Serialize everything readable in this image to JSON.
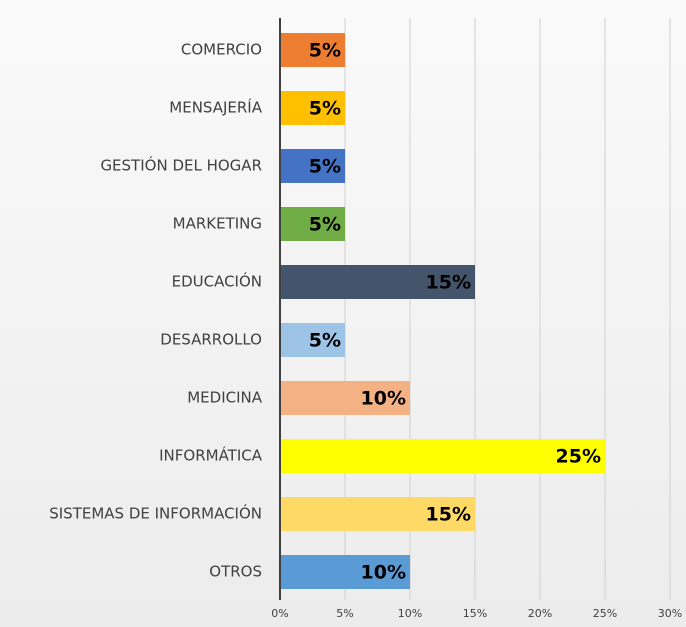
{
  "chart_data": {
    "type": "hbar",
    "categories": [
      "COMERCIO",
      "MENSAJERÍA",
      "GESTIÓN DEL HOGAR",
      "MARKETING",
      "EDUCACIÓN",
      "DESARROLLO",
      "MEDICINA",
      "INFORMÁTICA",
      "SISTEMAS DE INFORMACIÓN",
      "OTROS"
    ],
    "values": [
      5,
      5,
      5,
      5,
      15,
      5,
      10,
      25,
      15,
      10
    ],
    "value_labels": [
      "5%",
      "5%",
      "5%",
      "5%",
      "15%",
      "5%",
      "10%",
      "25%",
      "15%",
      "10%"
    ],
    "colors": [
      "#ed7d31",
      "#ffc000",
      "#4472c4",
      "#70ad47",
      "#44546a",
      "#9dc3e6",
      "#f4b183",
      "#ffff00",
      "#ffd966",
      "#5b9bd5"
    ],
    "xlim": [
      0,
      30
    ],
    "xticks": [
      {
        "value": 0,
        "label": "0%"
      },
      {
        "value": 5,
        "label": "5%"
      },
      {
        "value": 10,
        "label": "10%"
      },
      {
        "value": 15,
        "label": "15%"
      },
      {
        "value": 20,
        "label": "20%"
      },
      {
        "value": 25,
        "label": "25%"
      },
      {
        "value": 30,
        "label": "30%"
      }
    ],
    "grid": true
  }
}
